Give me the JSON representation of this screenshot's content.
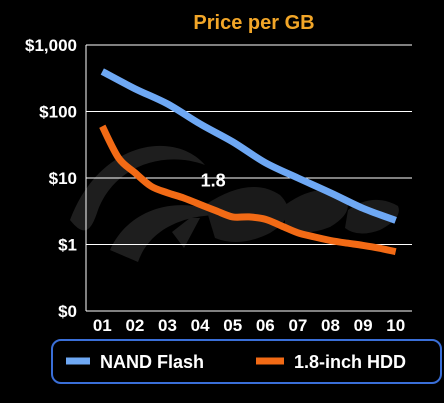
{
  "chart_data": {
    "type": "line",
    "title": "Price per GB",
    "xlabel": "",
    "ylabel": "",
    "yscale": "log",
    "ylim": [
      0.1,
      1000
    ],
    "y_ticks": [
      {
        "value": 1000,
        "label": "$1,000"
      },
      {
        "value": 100,
        "label": "$100"
      },
      {
        "value": 10,
        "label": "$10"
      },
      {
        "value": 1,
        "label": "$1"
      },
      {
        "value": 0.1,
        "label": "$0"
      }
    ],
    "categories": [
      "01",
      "02",
      "03",
      "04",
      "05",
      "06",
      "07",
      "08",
      "09",
      "10"
    ],
    "x_positions": [
      1,
      2,
      3,
      4,
      5,
      6,
      7,
      8,
      9,
      10
    ],
    "grid": true,
    "legend_position": "bottom",
    "series": [
      {
        "name": "NAND Flash",
        "color": "#6ea8f4",
        "x": [
          1,
          2,
          3,
          4,
          5,
          6,
          7,
          8,
          9,
          10
        ],
        "y": [
          400,
          220,
          130,
          65,
          35,
          17,
          10,
          6,
          3.5,
          2.3
        ]
      },
      {
        "name": "1.8-inch HDD",
        "color": "#f26a15",
        "x": [
          1,
          1.5,
          2,
          2.5,
          3,
          3.5,
          4,
          4.5,
          5,
          5.5,
          6,
          6.5,
          7,
          7.5,
          8,
          8.5,
          9,
          9.5,
          10
        ],
        "y": [
          60,
          20,
          12,
          7.5,
          6,
          5,
          4,
          3.2,
          2.6,
          2.6,
          2.4,
          1.9,
          1.5,
          1.3,
          1.15,
          1.05,
          0.97,
          0.88,
          0.78
        ]
      }
    ],
    "annotations": [
      {
        "text": "1.8",
        "x": 4.4,
        "y": 7.5
      }
    ]
  },
  "colors": {
    "background": "#000000",
    "grid": "#ffffff",
    "title": "#f2a628",
    "legend_border": "#3a6fd8"
  }
}
